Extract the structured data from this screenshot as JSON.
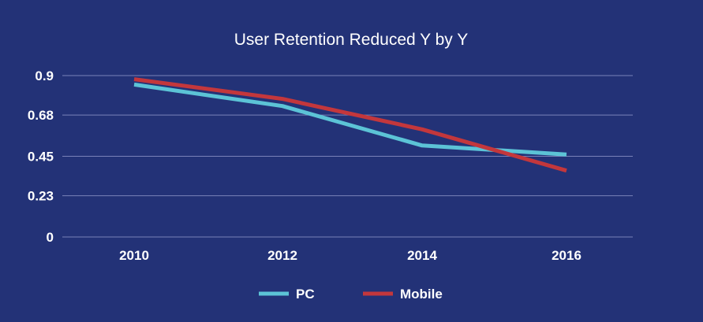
{
  "chart_data": {
    "type": "line",
    "title": "User Retention Reduced Y by Y",
    "xlabel": "",
    "ylabel": "",
    "categories": [
      "2010",
      "2012",
      "2014",
      "2016"
    ],
    "y_ticks": [
      "0.9",
      "0.68",
      "0.45",
      "0.23",
      "0"
    ],
    "y_tick_values": [
      0.9,
      0.68,
      0.45,
      0.23,
      0
    ],
    "ylim": [
      0,
      0.9
    ],
    "grid": true,
    "legend_position": "bottom",
    "series": [
      {
        "name": "PC",
        "color": "#5cc3d6",
        "values": [
          0.85,
          0.73,
          0.51,
          0.46
        ]
      },
      {
        "name": "Mobile",
        "color": "#c3373c",
        "values": [
          0.88,
          0.77,
          0.6,
          0.37
        ]
      }
    ]
  }
}
